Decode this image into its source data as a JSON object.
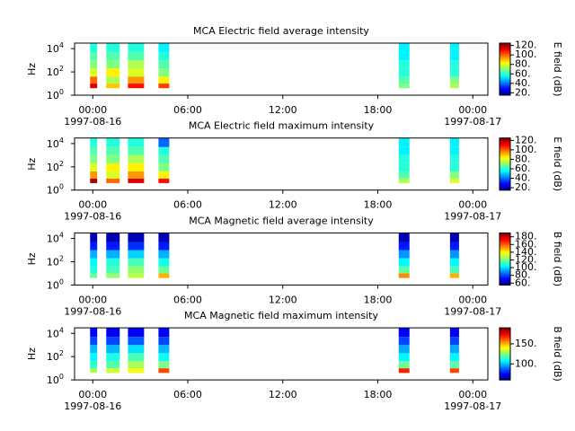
{
  "chart_data": [
    {
      "type": "spectrogram",
      "title": "MCA  Electric field average intensity",
      "ylabel": "Hz",
      "colorbar_label": "E field (dB)",
      "xlim": [
        -1.15,
        24.95
      ],
      "xticks": [
        {
          "value": 0,
          "label": "00:00"
        },
        {
          "value": 6,
          "label": "06:00"
        },
        {
          "value": 12,
          "label": "12:00"
        },
        {
          "value": 18,
          "label": "18:00"
        },
        {
          "value": 24,
          "label": "00:00"
        }
      ],
      "annotations": [
        {
          "text": "1997-08-16",
          "x": 0
        },
        {
          "text": "1997-08-17",
          "x": 24
        }
      ],
      "ylim": [
        1,
        30000
      ],
      "log_y": true,
      "yticks": [
        {
          "value": 1,
          "label": "10",
          "power": "0"
        },
        {
          "value": 100,
          "label": "10",
          "power": "2"
        },
        {
          "value": 10000,
          "label": "10",
          "power": "4"
        }
      ],
      "freq_edges": [
        4,
        10,
        40,
        200,
        1000,
        5000,
        30000
      ],
      "clim": [
        15,
        125
      ],
      "cticks": [
        {
          "value": 20,
          "label": "20."
        },
        {
          "value": 40,
          "label": "40."
        },
        {
          "value": 60,
          "label": "60."
        },
        {
          "value": 80,
          "label": "80."
        },
        {
          "value": 100,
          "label": "100."
        },
        {
          "value": 120,
          "label": "120."
        }
      ],
      "segments": [
        {
          "start": -0.17,
          "end": 0.28,
          "values": [
            115,
            100,
            80,
            70,
            65,
            60
          ]
        },
        {
          "start": 0.85,
          "end": 1.7,
          "values": [
            90,
            75,
            85,
            70,
            65,
            60
          ]
        },
        {
          "start": 2.22,
          "end": 3.24,
          "values": [
            110,
            95,
            80,
            75,
            65,
            60
          ]
        },
        {
          "start": 4.15,
          "end": 4.83,
          "values": [
            105,
            85,
            70,
            65,
            60,
            55
          ]
        },
        {
          "start": 19.32,
          "end": 20.0,
          "values": [
            70,
            65,
            60,
            60,
            55,
            55
          ]
        },
        {
          "start": 22.56,
          "end": 23.13,
          "values": [
            75,
            70,
            60,
            60,
            55,
            55
          ]
        }
      ]
    },
    {
      "type": "spectrogram",
      "title": "MCA  Electric field maximum intensity",
      "ylabel": "Hz",
      "colorbar_label": "E field (dB)",
      "xlim": [
        -1.15,
        24.95
      ],
      "xticks": [
        {
          "value": 0,
          "label": "00:00"
        },
        {
          "value": 6,
          "label": "06:00"
        },
        {
          "value": 12,
          "label": "12:00"
        },
        {
          "value": 18,
          "label": "18:00"
        },
        {
          "value": 24,
          "label": "00:00"
        }
      ],
      "annotations": [
        {
          "text": "1997-08-16",
          "x": 0
        },
        {
          "text": "1997-08-17",
          "x": 24
        }
      ],
      "ylim": [
        1,
        30000
      ],
      "log_y": true,
      "yticks": [
        {
          "value": 1,
          "label": "10",
          "power": "0"
        },
        {
          "value": 100,
          "label": "10",
          "power": "2"
        },
        {
          "value": 10000,
          "label": "10",
          "power": "4"
        }
      ],
      "freq_edges": [
        4,
        10,
        40,
        200,
        1000,
        5000,
        30000
      ],
      "clim": [
        15,
        125
      ],
      "cticks": [
        {
          "value": 20,
          "label": "20."
        },
        {
          "value": 40,
          "label": "40."
        },
        {
          "value": 60,
          "label": "60."
        },
        {
          "value": 80,
          "label": "80."
        },
        {
          "value": 100,
          "label": "100."
        },
        {
          "value": 120,
          "label": "120."
        }
      ],
      "segments": [
        {
          "start": -0.17,
          "end": 0.28,
          "values": [
            120,
            95,
            80,
            70,
            65,
            60
          ]
        },
        {
          "start": 0.85,
          "end": 1.7,
          "values": [
            100,
            80,
            85,
            70,
            65,
            60
          ]
        },
        {
          "start": 2.22,
          "end": 3.24,
          "values": [
            115,
            95,
            85,
            75,
            65,
            60
          ]
        },
        {
          "start": 4.15,
          "end": 4.83,
          "values": [
            110,
            85,
            70,
            65,
            60,
            40
          ]
        },
        {
          "start": 19.32,
          "end": 20.0,
          "values": [
            75,
            65,
            60,
            60,
            55,
            55
          ]
        },
        {
          "start": 22.56,
          "end": 23.13,
          "values": [
            80,
            70,
            60,
            60,
            55,
            55
          ]
        }
      ]
    },
    {
      "type": "spectrogram",
      "title": "MCA  Magnetic field average intensity",
      "ylabel": "Hz",
      "colorbar_label": "B field (dB)",
      "xlim": [
        -1.15,
        24.95
      ],
      "xticks": [
        {
          "value": 0,
          "label": "00:00"
        },
        {
          "value": 6,
          "label": "06:00"
        },
        {
          "value": 12,
          "label": "12:00"
        },
        {
          "value": 18,
          "label": "18:00"
        },
        {
          "value": 24,
          "label": "00:00"
        }
      ],
      "annotations": [
        {
          "text": "1997-08-16",
          "x": 0
        },
        {
          "text": "1997-08-17",
          "x": 24
        }
      ],
      "ylim": [
        1,
        30000
      ],
      "log_y": true,
      "yticks": [
        {
          "value": 1,
          "label": "10",
          "power": "0"
        },
        {
          "value": 100,
          "label": "10",
          "power": "2"
        },
        {
          "value": 10000,
          "label": "10",
          "power": "4"
        }
      ],
      "freq_edges": [
        4,
        10,
        40,
        200,
        1000,
        5000,
        30000
      ],
      "clim": [
        55,
        190
      ],
      "cticks": [
        {
          "value": 60,
          "label": "60."
        },
        {
          "value": 80,
          "label": "80."
        },
        {
          "value": 100,
          "label": "100."
        },
        {
          "value": 120,
          "label": "120."
        },
        {
          "value": 140,
          "label": "140."
        },
        {
          "value": 160,
          "label": "160."
        },
        {
          "value": 180,
          "label": "180."
        }
      ],
      "segments": [
        {
          "start": -0.17,
          "end": 0.28,
          "values": [
            120,
            110,
            105,
            95,
            75,
            62
          ]
        },
        {
          "start": 0.85,
          "end": 1.7,
          "values": [
            125,
            115,
            110,
            95,
            75,
            62
          ]
        },
        {
          "start": 2.22,
          "end": 3.24,
          "values": [
            130,
            125,
            115,
            100,
            78,
            62
          ]
        },
        {
          "start": 4.15,
          "end": 4.83,
          "values": [
            150,
            120,
            108,
            95,
            75,
            62
          ]
        },
        {
          "start": 19.32,
          "end": 20.0,
          "values": [
            155,
            118,
            105,
            92,
            75,
            62
          ]
        },
        {
          "start": 22.56,
          "end": 23.13,
          "values": [
            150,
            115,
            105,
            92,
            75,
            62
          ]
        }
      ]
    },
    {
      "type": "spectrogram",
      "title": "MCA  Magnetic field maximum intensity",
      "ylabel": "Hz",
      "colorbar_label": "B field (dB)",
      "xlim": [
        -1.15,
        24.95
      ],
      "xticks": [
        {
          "value": 0,
          "label": "00:00"
        },
        {
          "value": 6,
          "label": "06:00"
        },
        {
          "value": 12,
          "label": "12:00"
        },
        {
          "value": 18,
          "label": "18:00"
        },
        {
          "value": 24,
          "label": "00:00"
        }
      ],
      "annotations": [
        {
          "text": "1997-08-16",
          "x": 0
        },
        {
          "text": "1997-08-17",
          "x": 24
        }
      ],
      "ylim": [
        1,
        30000
      ],
      "log_y": true,
      "yticks": [
        {
          "value": 1,
          "label": "10",
          "power": "0"
        },
        {
          "value": 100,
          "label": "10",
          "power": "2"
        },
        {
          "value": 10000,
          "label": "10",
          "power": "4"
        }
      ],
      "freq_edges": [
        4,
        10,
        40,
        200,
        1000,
        5000,
        30000
      ],
      "clim": [
        60,
        190
      ],
      "cticks": [
        {
          "value": 100,
          "label": "100."
        },
        {
          "value": 150,
          "label": "150."
        }
      ],
      "segments": [
        {
          "start": -0.17,
          "end": 0.28,
          "values": [
            130,
            115,
            108,
            100,
            85,
            75
          ]
        },
        {
          "start": 0.85,
          "end": 1.7,
          "values": [
            135,
            120,
            112,
            100,
            85,
            75
          ]
        },
        {
          "start": 2.22,
          "end": 3.24,
          "values": [
            140,
            130,
            118,
            105,
            88,
            75
          ]
        },
        {
          "start": 4.15,
          "end": 4.83,
          "values": [
            165,
            125,
            110,
            100,
            85,
            75
          ]
        },
        {
          "start": 19.32,
          "end": 20.0,
          "values": [
            170,
            122,
            108,
            98,
            85,
            75
          ]
        },
        {
          "start": 22.56,
          "end": 23.13,
          "values": [
            165,
            120,
            108,
            98,
            85,
            75
          ]
        }
      ]
    }
  ]
}
